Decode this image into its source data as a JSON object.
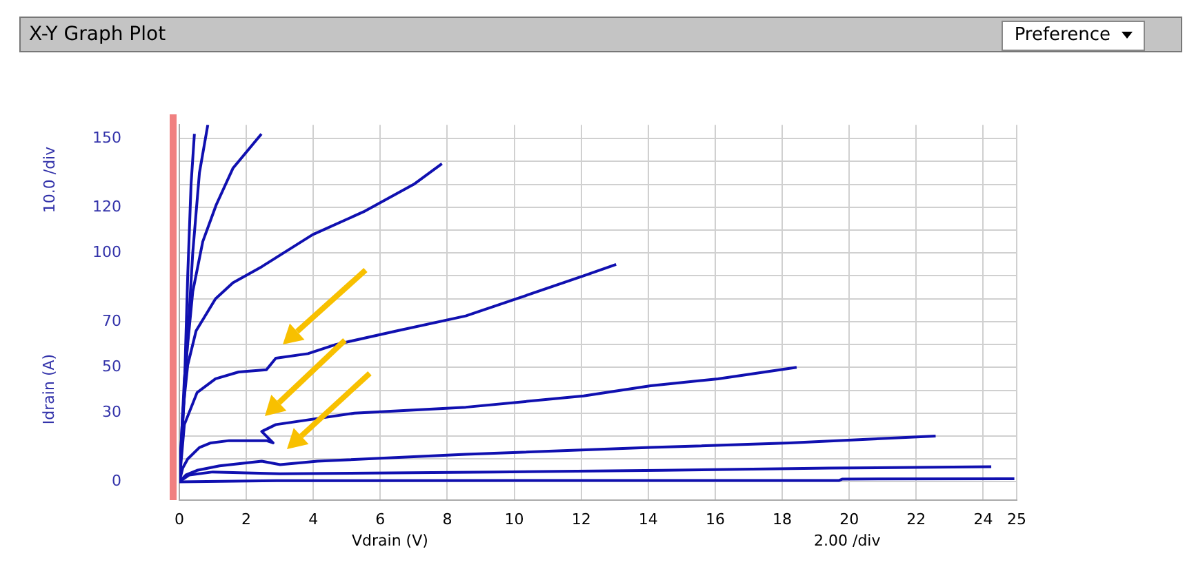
{
  "chart_data": {
    "type": "line",
    "title": "X-Y Graph Plot",
    "xlabel": "Vdrain (V)",
    "ylabel": "Idrain (A)",
    "annotations": [
      "Preference",
      "10.0 /div",
      "2.00 /div"
    ],
    "xlim": [
      0,
      25
    ],
    "xticks": [
      0,
      2,
      4,
      6,
      8,
      10,
      12,
      14,
      16,
      18,
      20,
      22,
      24,
      25
    ],
    "ylim": [
      -8,
      156
    ],
    "yticks": [
      0,
      {
        "value": 10,
        "label": null
      },
      {
        "value": 20,
        "label": null
      },
      30,
      {
        "value": 40,
        "label": null
      },
      50,
      {
        "value": 60,
        "label": null
      },
      70,
      {
        "value": 80,
        "label": null
      },
      {
        "value": 90,
        "label": null
      },
      100,
      {
        "value": 110,
        "label": null
      },
      120,
      {
        "value": 130,
        "label": null
      },
      {
        "value": 140,
        "label": null
      },
      150
    ],
    "grid": true,
    "legend": false,
    "marker": "none",
    "line_style": "solid",
    "series": [
      {
        "color": "#1010b0",
        "x": [
          0,
          0.15,
          0.25,
          0.35,
          0.45
        ],
        "values": [
          0,
          40,
          90,
          130,
          152
        ]
      },
      {
        "color": "#1010b0",
        "x": [
          0,
          0.2,
          0.4,
          0.6,
          0.85
        ],
        "values": [
          0,
          50,
          100,
          135,
          156
        ]
      },
      {
        "color": "#1010b0",
        "x": [
          0,
          0.15,
          0.4,
          0.7,
          1.1,
          1.6,
          2.45
        ],
        "values": [
          0,
          45,
          83,
          105,
          121,
          137,
          152
        ]
      },
      {
        "color": "#1010b0",
        "x": [
          0,
          0.1,
          0.25,
          0.5,
          1.08,
          1.6,
          2.46,
          3.98,
          5.5,
          7.0,
          7.84
        ],
        "values": [
          0,
          30,
          51,
          66,
          80,
          87,
          94,
          108,
          118,
          130,
          139
        ]
      },
      {
        "color": "#1010b0",
        "x": [
          0,
          0.15,
          0.53,
          1.08,
          1.77,
          2.6,
          2.88,
          3.84,
          4.67,
          6.5,
          8.55,
          10.07,
          12.07,
          13.04
        ],
        "values": [
          0,
          25,
          39,
          45,
          48,
          49,
          54,
          56,
          60,
          66,
          72.5,
          80,
          90,
          95
        ]
      },
      {
        "color": "#1010b0",
        "x": [
          0,
          0.1,
          0.25,
          0.6,
          0.94,
          1.49,
          2.6,
          2.8,
          2.46,
          2.88,
          5.23,
          8.55,
          12.07,
          14.07,
          16.08,
          18.43
        ],
        "values": [
          0,
          6,
          10,
          15,
          17,
          18,
          18,
          17,
          22,
          25,
          30,
          32.6,
          37.5,
          42,
          45,
          50
        ]
      },
      {
        "color": "#1010b0",
        "x": [
          0,
          0.2,
          0.53,
          1.2,
          2.46,
          3.01,
          4.12,
          8.55,
          14.07,
          18.22,
          22.58
        ],
        "values": [
          0,
          3,
          5,
          7,
          9,
          7.5,
          9,
          12,
          15,
          17,
          20
        ]
      },
      {
        "color": "#1010b0",
        "x": [
          0,
          0.3,
          1,
          3,
          9.4,
          14.4,
          19.4,
          24.24
        ],
        "values": [
          0,
          3,
          4.3,
          3.5,
          4.3,
          5,
          6,
          6.6
        ]
      },
      {
        "color": "#1010b0",
        "x": [
          0,
          2.9,
          19.7,
          19.8,
          24.93
        ],
        "values": [
          0,
          0.5,
          0.6,
          1.2,
          1.3
        ]
      }
    ]
  }
}
